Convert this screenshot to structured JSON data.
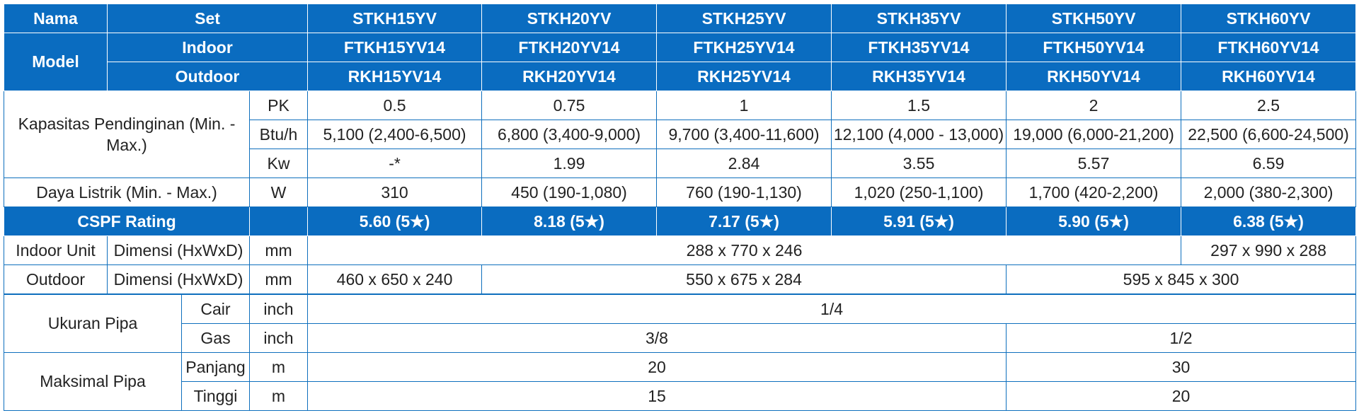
{
  "header": {
    "nama_label": "Nama",
    "model_label": "Model",
    "set_label": "Set",
    "indoor_label": "Indoor",
    "outdoor_label": "Outdoor",
    "sets": [
      "STKH15YV",
      "STKH20YV",
      "STKH25YV",
      "STKH35YV",
      "STKH50YV",
      "STKH60YV"
    ],
    "indoor_models": [
      "FTKH15YV14",
      "FTKH20YV14",
      "FTKH25YV14",
      "FTKH35YV14",
      "FTKH50YV14",
      "FTKH60YV14"
    ],
    "outdoor_models": [
      "RKH15YV14",
      "RKH20YV14",
      "RKH25YV14",
      "RKH35YV14",
      "RKH50YV14",
      "RKH60YV14"
    ]
  },
  "capacity": {
    "label": "Kapasitas Pendinginan (Min. - Max.)",
    "pk_unit": "PK",
    "pk_values": [
      "0.5",
      "0.75",
      "1",
      "1.5",
      "2",
      "2.5"
    ],
    "btu_unit": "Btu/h",
    "btu_values": [
      "5,100 (2,400-6,500)",
      "6,800 (3,400-9,000)",
      "9,700 (3,400-11,600)",
      "12,100 (4,000 - 13,000)",
      "19,000 (6,000-21,200)",
      "22,500 (6,600-24,500)"
    ],
    "kw_unit": "Kw",
    "kw_values": [
      "-*",
      "1.99",
      "2.84",
      "3.55",
      "5.57",
      "6.59"
    ]
  },
  "power": {
    "label": "Daya Listrik (Min. - Max.)",
    "unit": "W",
    "values": [
      "310",
      "450 (190-1,080)",
      "760 (190-1,130)",
      "1,020 (250-1,100)",
      "1,700 (420-2,200)",
      "2,000 (380-2,300)"
    ]
  },
  "cspf": {
    "label": "CSPF Rating",
    "values": [
      "5.60 (5★)",
      "8.18 (5★)",
      "7.17 (5★)",
      "5.91 (5★)",
      "5.90 (5★)",
      "6.38 (5★)"
    ]
  },
  "indoor_unit": {
    "label": "Indoor Unit",
    "sub_label": "Dimensi (HxWxD)",
    "unit": "mm",
    "value_a": "288 x 770 x 246",
    "value_b": "297 x 990 x 288"
  },
  "outdoor_unit": {
    "label": "Outdoor",
    "sub_label": "Dimensi (HxWxD)",
    "unit": "mm",
    "value_a": "460 x 650 x 240",
    "value_b": "550 x 675 x 284",
    "value_c": "595 x 845 x 300"
  },
  "pipe_size": {
    "label": "Ukuran Pipa",
    "cair_label": "Cair",
    "cair_unit": "inch",
    "cair_value": "1/4",
    "gas_label": "Gas",
    "gas_unit": "inch",
    "gas_value_a": "3/8",
    "gas_value_b": "1/2"
  },
  "max_pipe": {
    "label": "Maksimal Pipa",
    "panjang_label": "Panjang",
    "panjang_unit": "m",
    "panjang_value_a": "20",
    "panjang_value_b": "30",
    "tinggi_label": "Tinggi",
    "tinggi_unit": "m",
    "tinggi_value_a": "15",
    "tinggi_value_b": "20"
  },
  "colors": {
    "header_bg": "#0a6cc0",
    "border": "#0e6fbd"
  }
}
